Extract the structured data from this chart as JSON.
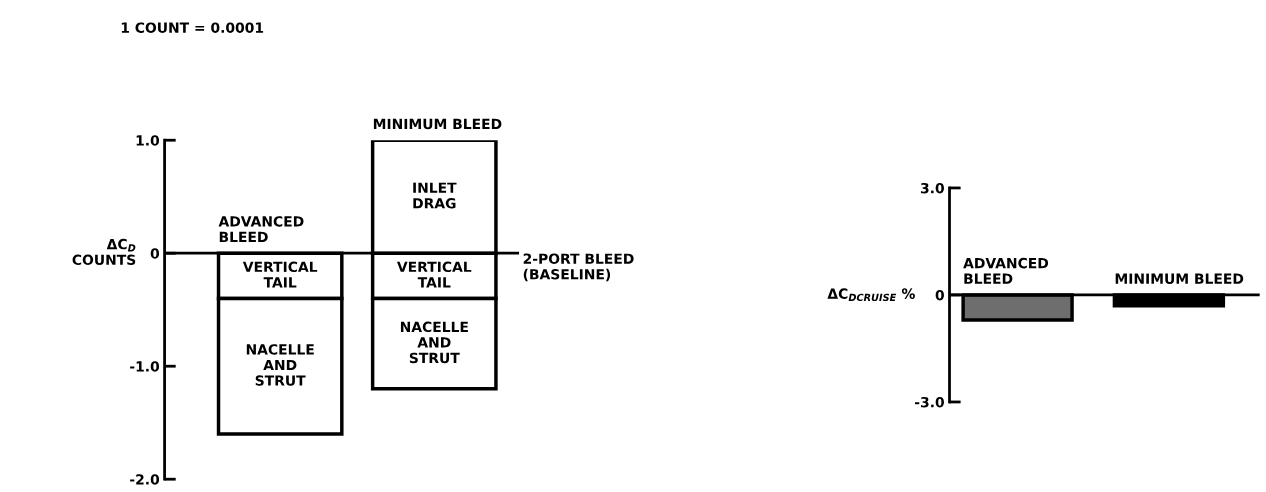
{
  "chart_data": [
    {
      "type": "bar",
      "stacked": true,
      "ylabel": "ΔC$_{D}$\nCOUNTS",
      "categories": [
        "ADVANCED\nBLEED",
        "MINIMUM BLEED"
      ],
      "series": [
        {
          "name": "VERTICAL\nTAIL",
          "color": "#ffffff",
          "values": [
            -0.4,
            -0.4
          ]
        },
        {
          "name": "NACELLE\nAND\nSTRUT",
          "color": "#ffffff",
          "values": [
            -1.2,
            -0.8
          ]
        },
        {
          "name": "INLET\nDRAG",
          "color": "#ffffff",
          "values": [
            null,
            1.0
          ]
        }
      ],
      "ylim": [
        -2.0,
        1.0
      ],
      "yticks": [
        {
          "value": 1.0,
          "label": "1.0"
        },
        0,
        {
          "value": -1.0,
          "label": "-1.0"
        },
        {
          "value": -2.0,
          "label": "-2.0"
        }
      ],
      "tick_labels": "y",
      "grid": false,
      "legend": false,
      "ref_lines": [
        {
          "axis": "y",
          "value": 0,
          "label": "2-PORT BLEED\n(BASELINE)"
        }
      ],
      "annotations": [
        "1 COUNT = 0.0001"
      ]
    },
    {
      "type": "bar",
      "ylabel": "ΔC$_{DCRUISE}$ %",
      "categories": [
        "ADVANCED\nBLEED",
        "MINIMUM BLEED"
      ],
      "values": [
        -0.7,
        -0.3
      ],
      "colors": [
        "#6e6e6e",
        "#000000"
      ],
      "ylim": [
        -3.0,
        3.0
      ],
      "yticks": [
        {
          "value": 3.0,
          "label": "3.0"
        },
        0,
        {
          "value": -3.0,
          "label": "-3.0"
        }
      ],
      "tick_labels": "y",
      "grid": false,
      "legend": false,
      "ref_lines": [
        {
          "axis": "y",
          "value": 0
        }
      ]
    }
  ]
}
